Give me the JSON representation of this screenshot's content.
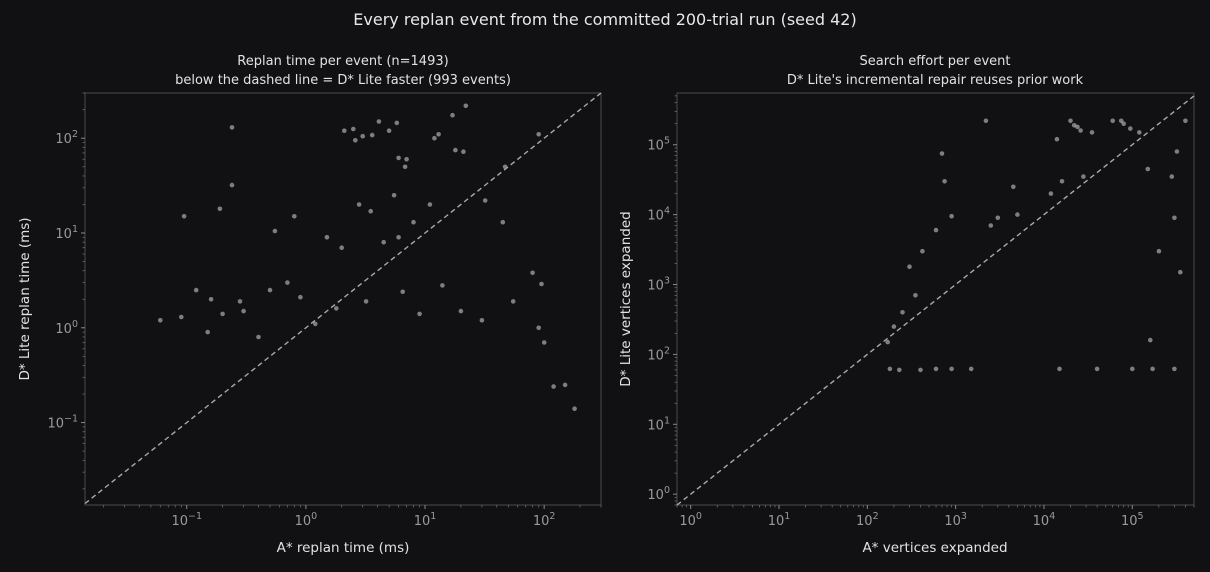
{
  "figure": {
    "suptitle": "Every replan event from the committed 200-trial run (seed 42)",
    "background": "#111113",
    "point_color": "#d8d8d4",
    "reference_color": "#a9a9a9"
  },
  "chart_data": [
    {
      "type": "scatter",
      "title": "Replan time per event (n=1493)",
      "subtitle": "below the dashed line = D* Lite faster (993 events)",
      "xlabel": "A* replan time (ms)",
      "ylabel": "D* Lite replan time (ms)",
      "xscale": "log",
      "yscale": "log",
      "xlim": [
        0.014,
        300
      ],
      "ylim": [
        0.0135,
        300
      ],
      "xticks": [
        {
          "value": 0.1,
          "base": "10",
          "exp": "−1"
        },
        {
          "value": 1,
          "base": "10",
          "exp": "0"
        },
        {
          "value": 10,
          "base": "10",
          "exp": "1"
        },
        {
          "value": 100,
          "base": "10",
          "exp": "2"
        }
      ],
      "yticks": [
        {
          "value": 0.1,
          "base": "10",
          "exp": "−1"
        },
        {
          "value": 1,
          "base": "10",
          "exp": "0"
        },
        {
          "value": 10,
          "base": "10",
          "exp": "1"
        },
        {
          "value": 100,
          "base": "10",
          "exp": "2"
        }
      ],
      "reference_line": "y = x (dashed)",
      "grid": false,
      "n_events": 1493,
      "events_below_line": 993,
      "series": [
        {
          "points": [
            [
              0.24,
              130
            ],
            [
              0.24,
              32
            ],
            [
              0.095,
              15
            ],
            [
              0.19,
              18
            ],
            [
              2.1,
              120
            ],
            [
              2.5,
              125
            ],
            [
              2.6,
              95
            ],
            [
              3.0,
              105
            ],
            [
              4.1,
              150
            ],
            [
              3.6,
              108
            ],
            [
              5.0,
              120
            ],
            [
              5.8,
              145
            ],
            [
              6.0,
              62
            ],
            [
              7.0,
              60
            ],
            [
              6.8,
              50
            ],
            [
              12,
              100
            ],
            [
              13,
              110
            ],
            [
              17,
              175
            ],
            [
              22,
              220
            ],
            [
              18,
              75
            ],
            [
              21,
              72
            ],
            [
              90,
              110
            ],
            [
              47,
              50
            ],
            [
              5.5,
              25
            ],
            [
              2.8,
              20
            ],
            [
              3.5,
              17
            ],
            [
              11,
              20
            ],
            [
              32,
              22
            ],
            [
              45,
              13
            ],
            [
              8.0,
              13
            ],
            [
              0.8,
              15
            ],
            [
              0.55,
              10.5
            ],
            [
              1.5,
              9
            ],
            [
              4.5,
              8
            ],
            [
              6,
              9
            ],
            [
              2,
              7
            ],
            [
              0.3,
              1.5
            ],
            [
              0.5,
              2.5
            ],
            [
              0.7,
              3
            ],
            [
              0.12,
              2.5
            ],
            [
              0.16,
              2.0
            ],
            [
              0.2,
              1.4
            ],
            [
              0.09,
              1.3
            ],
            [
              0.06,
              1.2
            ],
            [
              0.15,
              0.9
            ],
            [
              0.28,
              1.9
            ],
            [
              0.4,
              0.8
            ],
            [
              0.9,
              2.1
            ],
            [
              1.2,
              1.1
            ],
            [
              1.8,
              1.6
            ],
            [
              3.2,
              1.9
            ],
            [
              6.5,
              2.4
            ],
            [
              9,
              1.4
            ],
            [
              14,
              2.8
            ],
            [
              20,
              1.5
            ],
            [
              30,
              1.2
            ],
            [
              55,
              1.9
            ],
            [
              80,
              3.8
            ],
            [
              95,
              2.9
            ],
            [
              90,
              1.0
            ],
            [
              100,
              0.7
            ],
            [
              150,
              0.25
            ],
            [
              180,
              0.14
            ],
            [
              120,
              0.24
            ]
          ]
        }
      ]
    },
    {
      "type": "scatter",
      "title": "Search effort per event",
      "subtitle": "D* Lite's incremental repair reuses prior work",
      "xlabel": "A* vertices expanded",
      "ylabel": "D* Lite vertices expanded",
      "xscale": "log",
      "yscale": "log",
      "xlim": [
        0.7,
        500000
      ],
      "ylim": [
        0.7,
        550000
      ],
      "xticks": [
        {
          "value": 1,
          "base": "10",
          "exp": "0"
        },
        {
          "value": 10,
          "base": "10",
          "exp": "1"
        },
        {
          "value": 100,
          "base": "10",
          "exp": "2"
        },
        {
          "value": 1000,
          "base": "10",
          "exp": "3"
        },
        {
          "value": 10000,
          "base": "10",
          "exp": "4"
        },
        {
          "value": 100000,
          "base": "10",
          "exp": "5"
        }
      ],
      "yticks": [
        {
          "value": 1,
          "base": "10",
          "exp": "0"
        },
        {
          "value": 10,
          "base": "10",
          "exp": "1"
        },
        {
          "value": 100,
          "base": "10",
          "exp": "2"
        },
        {
          "value": 1000,
          "base": "10",
          "exp": "3"
        },
        {
          "value": 10000,
          "base": "10",
          "exp": "4"
        },
        {
          "value": 100000,
          "base": "10",
          "exp": "5"
        }
      ],
      "reference_line": "y = x (dashed)",
      "grid": false,
      "series": [
        {
          "points": [
            [
              2200,
              220000
            ],
            [
              20000,
              220000
            ],
            [
              22000,
              190000
            ],
            [
              24000,
              180000
            ],
            [
              26000,
              160000
            ],
            [
              35000,
              150000
            ],
            [
              60000,
              220000
            ],
            [
              75000,
              220000
            ],
            [
              95000,
              170000
            ],
            [
              120000,
              150000
            ],
            [
              400000,
              220000
            ],
            [
              80000,
              200000
            ],
            [
              14000,
              120000
            ],
            [
              700,
              75000
            ],
            [
              750,
              30000
            ],
            [
              4500,
              25000
            ],
            [
              16000,
              30000
            ],
            [
              28000,
              35000
            ],
            [
              150000,
              45000
            ],
            [
              320000,
              80000
            ],
            [
              5000,
              10000
            ],
            [
              2500,
              7000
            ],
            [
              3000,
              9000
            ],
            [
              12000,
              20000
            ],
            [
              900,
              9500
            ],
            [
              600,
              6000
            ],
            [
              420,
              3000
            ],
            [
              300,
              1800
            ],
            [
              350,
              700
            ],
            [
              250,
              400
            ],
            [
              200,
              250
            ],
            [
              170,
              150
            ],
            [
              180,
              62
            ],
            [
              230,
              60
            ],
            [
              400,
              60
            ],
            [
              600,
              62
            ],
            [
              900,
              62
            ],
            [
              1500,
              62
            ],
            [
              15000,
              62
            ],
            [
              40000,
              62
            ],
            [
              100000,
              62
            ],
            [
              170000,
              62
            ],
            [
              300000,
              62
            ],
            [
              160000,
              160
            ],
            [
              300000,
              9000
            ],
            [
              280000,
              35000
            ],
            [
              350000,
              1500
            ],
            [
              200000,
              3000
            ]
          ]
        }
      ]
    }
  ]
}
